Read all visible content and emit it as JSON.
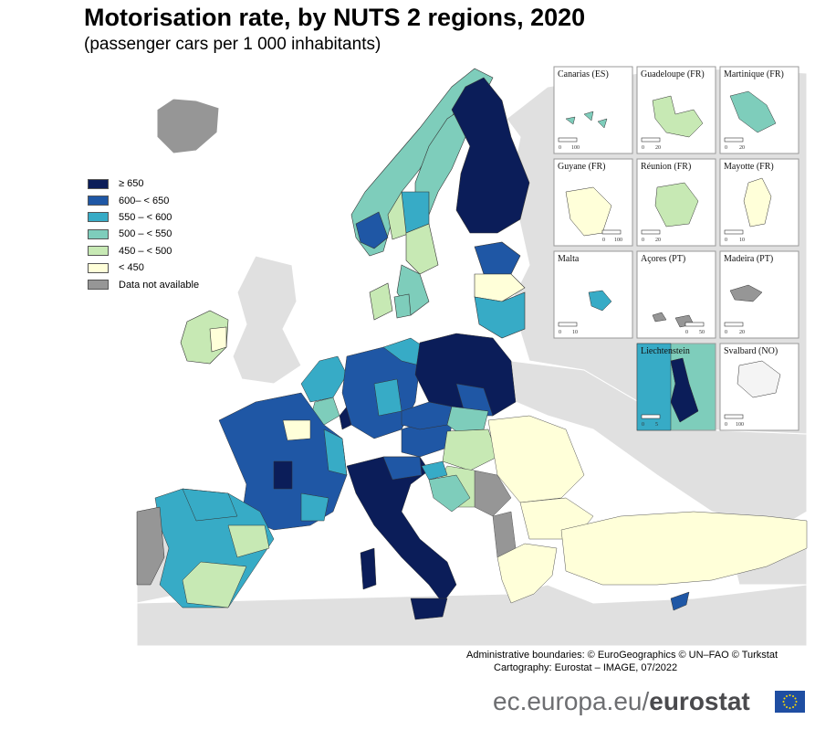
{
  "title": "Motorisation rate, by NUTS 2 regions, 2020",
  "subtitle": "(passenger cars per 1 000 inhabitants)",
  "legend": [
    {
      "label": "≥ 650",
      "color": "#0b1d59"
    },
    {
      "label": "600– < 650",
      "color": "#1f57a5"
    },
    {
      "label": "550 – < 600",
      "color": "#37abc6"
    },
    {
      "label": "500 – < 550",
      "color": "#7ecdbb"
    },
    {
      "label": "450 – < 500",
      "color": "#c7e9b4"
    },
    {
      "label": "< 450",
      "color": "#ffffd9"
    },
    {
      "label": "Data not available",
      "color": "#969696"
    }
  ],
  "insets": [
    {
      "label": "Canarias (ES)",
      "scale": [
        "0",
        "100"
      ]
    },
    {
      "label": "Guadeloupe (FR)",
      "scale": [
        "0",
        "20"
      ]
    },
    {
      "label": "Martinique (FR)",
      "scale": [
        "0",
        "20"
      ]
    },
    {
      "label": "Guyane (FR)",
      "scale": [
        "0",
        "100"
      ]
    },
    {
      "label": "Réunion (FR)",
      "scale": [
        "0",
        "20"
      ]
    },
    {
      "label": "Mayotte (FR)",
      "scale": [
        "0",
        "10"
      ]
    },
    {
      "label": "Malta",
      "scale": [
        "0",
        "10"
      ]
    },
    {
      "label": "Açores (PT)",
      "scale": [
        "0",
        "50"
      ]
    },
    {
      "label": "Madeira (PT)",
      "scale": [
        "0",
        "20"
      ]
    },
    {
      "label": "Liechtenstein",
      "scale": [
        "0",
        "5"
      ]
    },
    {
      "label": "Svalbard (NO)",
      "scale": [
        "0",
        "100"
      ]
    }
  ],
  "credits": {
    "line1": "Administrative boundaries: © EuroGeographics © UN–FAO © Turkstat",
    "line2": "Cartography: Eurostat – IMAGE, 07/2022"
  },
  "brand": {
    "domain": "ec.europa.eu/",
    "name": "eurostat"
  }
}
